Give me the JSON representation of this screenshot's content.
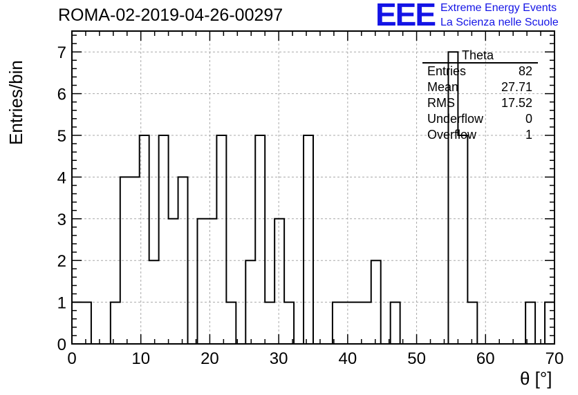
{
  "header": {
    "run_title": "ROMA-02-2019-04-26-00297",
    "logo": "EEE",
    "logo_line1": "Extreme Energy Events",
    "logo_line2": "La Scienza nelle Scuole",
    "brand_color": "#1414e6"
  },
  "stats": {
    "title": "Theta",
    "rows": [
      {
        "label": "Entries",
        "value": "82"
      },
      {
        "label": "Mean",
        "value": "27.71"
      },
      {
        "label": "RMS",
        "value": "17.52"
      },
      {
        "label": "Underflow",
        "value": "0"
      },
      {
        "label": "Overflow",
        "value": "1"
      }
    ]
  },
  "chart_data": {
    "type": "histogram",
    "xlabel": "θ [°]",
    "ylabel": "Entries/bin",
    "xlim": [
      0,
      70
    ],
    "ylim": [
      0,
      7.5
    ],
    "grid": true,
    "bin_width": 1.4,
    "bin_edges_start": 0,
    "counts": [
      1,
      1,
      0,
      0,
      1,
      4,
      4,
      5,
      2,
      5,
      3,
      4,
      0,
      3,
      3,
      5,
      1,
      0,
      2,
      5,
      1,
      3,
      1,
      0,
      5,
      0,
      0,
      1,
      1,
      1,
      1,
      2,
      0,
      1,
      0,
      0,
      0,
      0,
      0,
      7,
      5,
      1,
      0,
      0,
      0,
      0,
      0,
      1,
      0,
      1
    ],
    "xticks": [
      0,
      10,
      20,
      30,
      40,
      50,
      60,
      70
    ],
    "yticks": [
      0,
      1,
      2,
      3,
      4,
      5,
      6,
      7
    ]
  }
}
